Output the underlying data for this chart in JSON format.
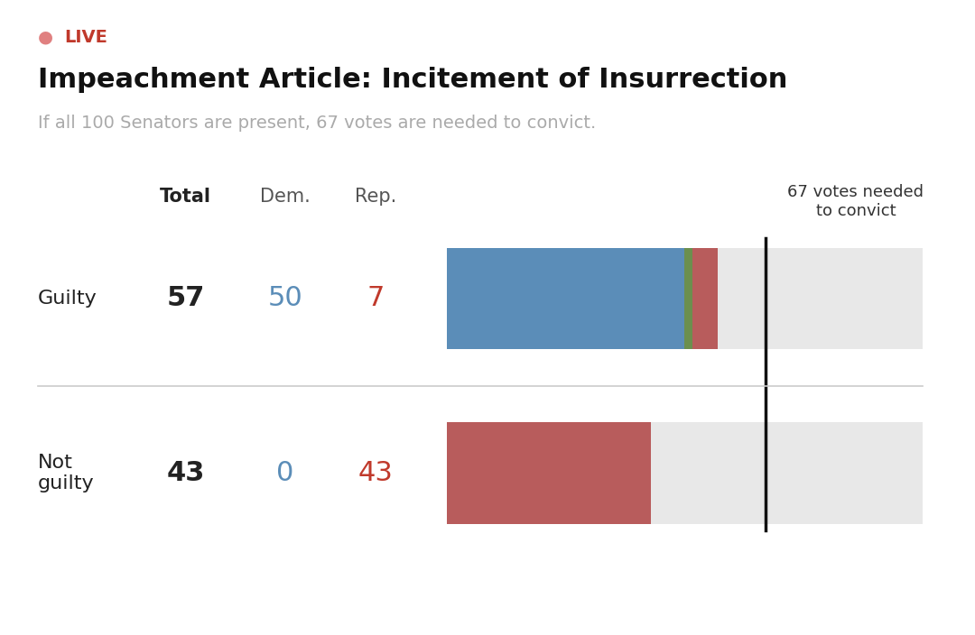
{
  "title": "Impeachment Article: Incitement of Insurrection",
  "subtitle": "If all 100 Senators are present, 67 votes are needed to convict.",
  "live_label": "LIVE",
  "bg_color": "#ffffff",
  "bar_bg_color": "#e8e8e8",
  "guilty": {
    "label": "Guilty",
    "total": 57,
    "dem": 50,
    "rep": 7,
    "dem_color": "#5b8db8",
    "rep_color": "#b85c5c",
    "divider_color": "#6b8f4e"
  },
  "not_guilty": {
    "label": "Not\nguilty",
    "total": 43,
    "dem": 0,
    "rep": 43,
    "rep_color": "#b85c5c"
  },
  "total_senators": 100,
  "conviction_threshold": 67,
  "col_headers": {
    "total": "Total",
    "dem": "Dem.",
    "rep": "Rep."
  },
  "threshold_label": "67 votes needed\nto convict",
  "dem_color": "#5b8db8",
  "rep_color": "#c0392b",
  "total_color": "#222222",
  "label_color": "#222222",
  "header_color": "#555555"
}
